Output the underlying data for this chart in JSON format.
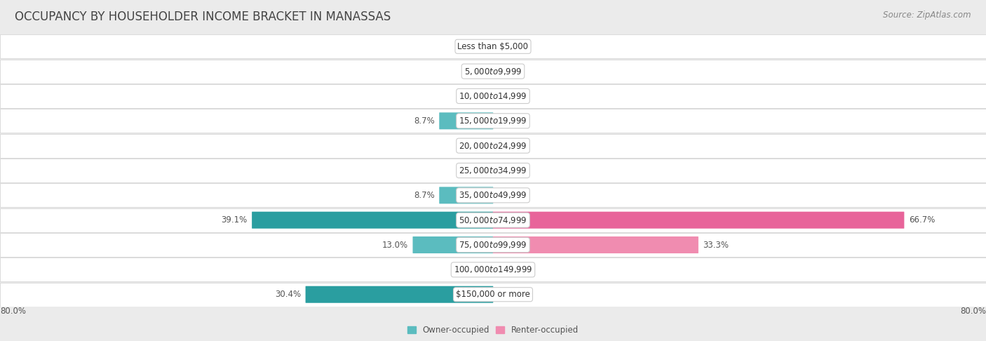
{
  "title": "OCCUPANCY BY HOUSEHOLDER INCOME BRACKET IN MANASSAS",
  "source": "Source: ZipAtlas.com",
  "categories": [
    "Less than $5,000",
    "$5,000 to $9,999",
    "$10,000 to $14,999",
    "$15,000 to $19,999",
    "$20,000 to $24,999",
    "$25,000 to $34,999",
    "$35,000 to $49,999",
    "$50,000 to $74,999",
    "$75,000 to $99,999",
    "$100,000 to $149,999",
    "$150,000 or more"
  ],
  "owner_values": [
    0.0,
    0.0,
    0.0,
    8.7,
    0.0,
    0.0,
    8.7,
    39.1,
    13.0,
    0.0,
    30.4
  ],
  "renter_values": [
    0.0,
    0.0,
    0.0,
    0.0,
    0.0,
    0.0,
    0.0,
    66.7,
    33.3,
    0.0,
    0.0
  ],
  "owner_color": "#5bbcbf",
  "renter_color": "#f08cb0",
  "owner_color_dark": "#2a9ea0",
  "renter_color_dark": "#e8649a",
  "background_color": "#ebebeb",
  "row_bg_color": "#f7f7f7",
  "axis_max": 80.0,
  "title_fontsize": 12,
  "label_fontsize": 8.5,
  "tick_fontsize": 8.5,
  "source_fontsize": 8.5,
  "legend_label_owner": "Owner-occupied",
  "legend_label_renter": "Renter-occupied",
  "x_axis_label_left": "80.0%",
  "x_axis_label_right": "80.0%"
}
